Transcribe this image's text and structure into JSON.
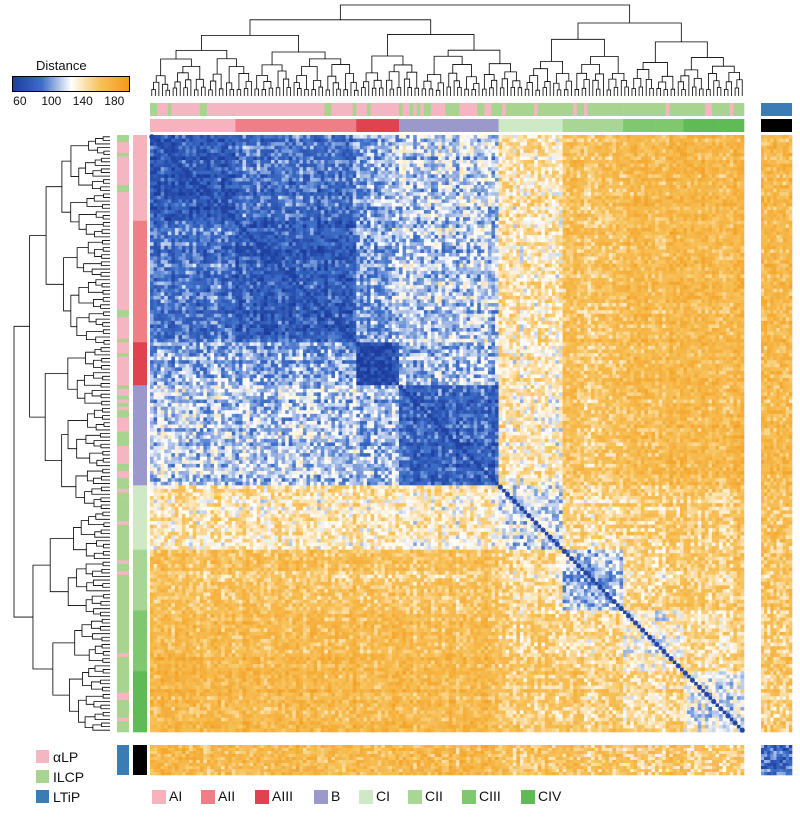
{
  "chart_data": {
    "type": "heatmap",
    "colorbar": {
      "title": "Distance",
      "ticks": [
        60,
        100,
        140,
        180
      ],
      "range": [
        50,
        200
      ],
      "colors": [
        "#1d3d9e",
        "#3d6fc9",
        "#ffffff",
        "#f7c25a",
        "#f39a1a"
      ]
    },
    "cell_types": [
      {
        "name": "αLP",
        "color": "#f4b6c2"
      },
      {
        "name": "ILCP",
        "color": "#a8d490"
      },
      {
        "name": "LTiP",
        "color": "#3b7cb5"
      }
    ],
    "clusters": [
      {
        "name": "AI",
        "color": "#f6b3bd",
        "count": 24
      },
      {
        "name": "AII",
        "color": "#ef7e87",
        "count": 34
      },
      {
        "name": "AIII",
        "color": "#e0434f",
        "count": 12
      },
      {
        "name": "B",
        "color": "#9b99cc",
        "count": 28
      },
      {
        "name": "CI",
        "color": "#cfe8c5",
        "count": 18
      },
      {
        "name": "CII",
        "color": "#a9d695",
        "count": 17
      },
      {
        "name": "CIII",
        "color": "#80c86f",
        "count": 17
      },
      {
        "name": "CIV",
        "color": "#5fbb56",
        "count": 17
      }
    ],
    "ltip_block": {
      "cell_type": "LTiP",
      "cluster_color": "#000000",
      "count": 10
    },
    "block_mean_distance": {
      "AI": [
        68,
        82,
        100,
        106,
        132,
        150,
        160,
        163
      ],
      "AII": [
        82,
        72,
        100,
        105,
        132,
        150,
        160,
        163
      ],
      "AIII": [
        100,
        100,
        66,
        104,
        134,
        152,
        162,
        165
      ],
      "B": [
        106,
        105,
        104,
        76,
        128,
        148,
        158,
        162
      ],
      "CI": [
        132,
        132,
        134,
        128,
        112,
        136,
        144,
        148
      ],
      "CII": [
        150,
        150,
        152,
        148,
        136,
        100,
        138,
        146
      ],
      "CIII": [
        160,
        160,
        162,
        158,
        144,
        138,
        124,
        140
      ],
      "CIV": [
        163,
        163,
        165,
        162,
        148,
        146,
        140,
        118
      ]
    },
    "ltip_mean_distance_to_clusters": [
      160,
      160,
      162,
      160,
      152,
      150,
      148,
      146
    ],
    "ltip_within_distance": 80
  }
}
